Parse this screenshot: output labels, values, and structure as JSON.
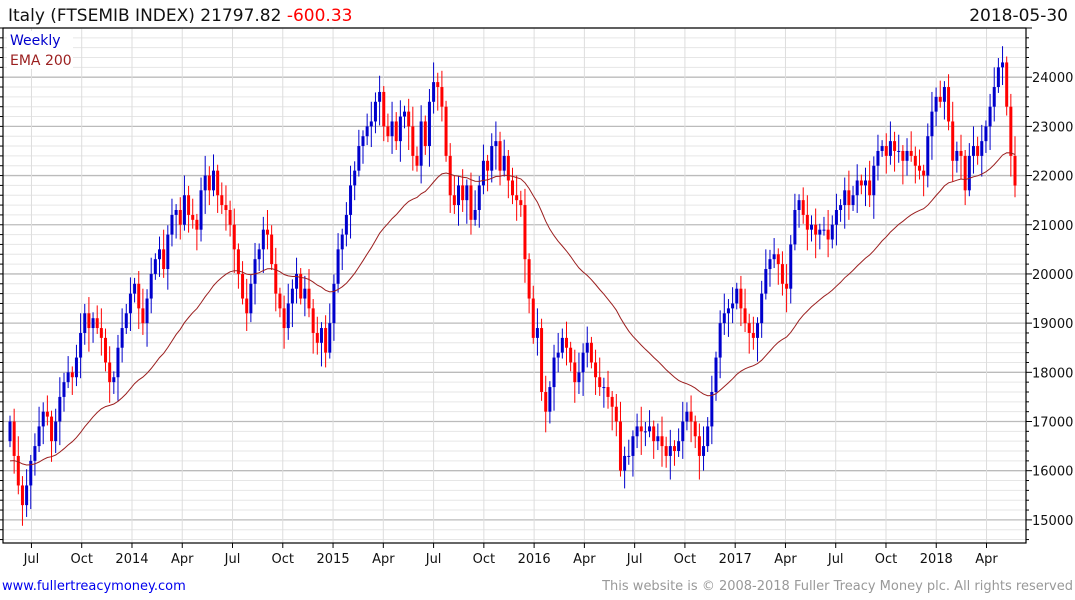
{
  "header": {
    "title": "Italy (FTSEMIB INDEX) 21797.82",
    "change": "-600.33",
    "date": "2018-05-30"
  },
  "footer": {
    "link": "www.fullertreacymoney.com",
    "copyright": "This website is © 2008-2018 Fuller Treacy Money plc. All rights reserved"
  },
  "colors": {
    "up": "#0000cc",
    "down": "#ff0000",
    "ema": "#9b1f1f",
    "change": "#ff0000"
  },
  "chart_data": {
    "type": "candlestick",
    "title": "Italy (FTSEMIB INDEX)",
    "legend": [
      "Weekly",
      "EMA 200"
    ],
    "legend_placement": "top-left",
    "ylim": [
      14530,
      25000
    ],
    "xlim_months_since_2013": [
      4.72,
      64.7
    ],
    "y_ticks": [
      15000,
      16000,
      17000,
      18000,
      19000,
      20000,
      21000,
      22000,
      23000,
      24000
    ],
    "x_ticks": [
      {
        "label": "Jul",
        "m": 6
      },
      {
        "label": "Oct",
        "m": 9
      },
      {
        "label": "2014",
        "m": 12
      },
      {
        "label": "Apr",
        "m": 15
      },
      {
        "label": "Jul",
        "m": 18
      },
      {
        "label": "Oct",
        "m": 21
      },
      {
        "label": "2015",
        "m": 24
      },
      {
        "label": "Apr",
        "m": 27
      },
      {
        "label": "Jul",
        "m": 30
      },
      {
        "label": "Oct",
        "m": 33
      },
      {
        "label": "2016",
        "m": 36
      },
      {
        "label": "Apr",
        "m": 39
      },
      {
        "label": "Jul",
        "m": 42
      },
      {
        "label": "Oct",
        "m": 45
      },
      {
        "label": "2017",
        "m": 48
      },
      {
        "label": "Apr",
        "m": 51
      },
      {
        "label": "Jul",
        "m": 54
      },
      {
        "label": "Oct",
        "m": 57
      },
      {
        "label": "2018",
        "m": 60
      },
      {
        "label": "Apr",
        "m": 63
      }
    ],
    "grid": true,
    "first_open": 16600,
    "weekly_close": [
      17000,
      16300,
      15700,
      15300,
      15700,
      16200,
      16500,
      16900,
      17200,
      17100,
      16600,
      17000,
      17500,
      17800,
      18000,
      17900,
      18300,
      18800,
      19200,
      18900,
      19100,
      18900,
      18700,
      18200,
      17800,
      17900,
      18500,
      18900,
      19200,
      19600,
      19800,
      19300,
      19000,
      19500,
      20000,
      20300,
      20500,
      20100,
      20800,
      21200,
      21300,
      21000,
      21600,
      21200,
      21100,
      20900,
      21700,
      22000,
      21700,
      22100,
      21600,
      21400,
      21300,
      21000,
      20500,
      20000,
      19500,
      19200,
      19800,
      20300,
      20500,
      20900,
      20800,
      20200,
      19600,
      19300,
      18900,
      19400,
      19700,
      20000,
      19500,
      19700,
      19300,
      18800,
      18600,
      18900,
      18400,
      19000,
      19800,
      20500,
      20800,
      21200,
      21800,
      22100,
      22600,
      22800,
      23000,
      23100,
      23500,
      23700,
      23000,
      22800,
      23100,
      22700,
      23200,
      23300,
      23000,
      22400,
      22200,
      23100,
      22600,
      23500,
      23900,
      23800,
      23400,
      22400,
      21600,
      21400,
      21800,
      21500,
      21800,
      21100,
      21300,
      21800,
      22300,
      22100,
      22600,
      22700,
      22100,
      22400,
      21900,
      21600,
      21500,
      21400,
      20300,
      19500,
      18700,
      18900,
      17600,
      17200,
      17700,
      18300,
      18400,
      18700,
      18500,
      18200,
      17800,
      18000,
      18400,
      18600,
      18200,
      17900,
      17700,
      17700,
      17500,
      17300,
      17000,
      16000,
      16300,
      16300,
      16700,
      16900,
      16800,
      16800,
      16900,
      16600,
      16700,
      16500,
      16300,
      16500,
      16400,
      16600,
      17000,
      17200,
      17000,
      16700,
      16300,
      16500,
      16900,
      17600,
      18300,
      19000,
      19200,
      19300,
      19400,
      19700,
      19300,
      19000,
      18800,
      18700,
      19000,
      19600,
      20100,
      20300,
      20400,
      20200,
      19800,
      19700,
      20600,
      21300,
      21500,
      21200,
      20900,
      21000,
      20800,
      20900,
      20900,
      20700,
      21000,
      21300,
      21400,
      21700,
      21400,
      21600,
      21900,
      21800,
      21900,
      21600,
      22200,
      22500,
      22600,
      22400,
      22700,
      22500,
      22500,
      22300,
      22500,
      22400,
      22200,
      22100,
      22000,
      22800,
      23300,
      23600,
      23500,
      23800,
      23100,
      22300,
      22500,
      22400,
      21700,
      22400,
      22600,
      22400,
      22700,
      23000,
      23400,
      23800,
      24200,
      24300,
      23400,
      22400,
      21798
    ]
  }
}
